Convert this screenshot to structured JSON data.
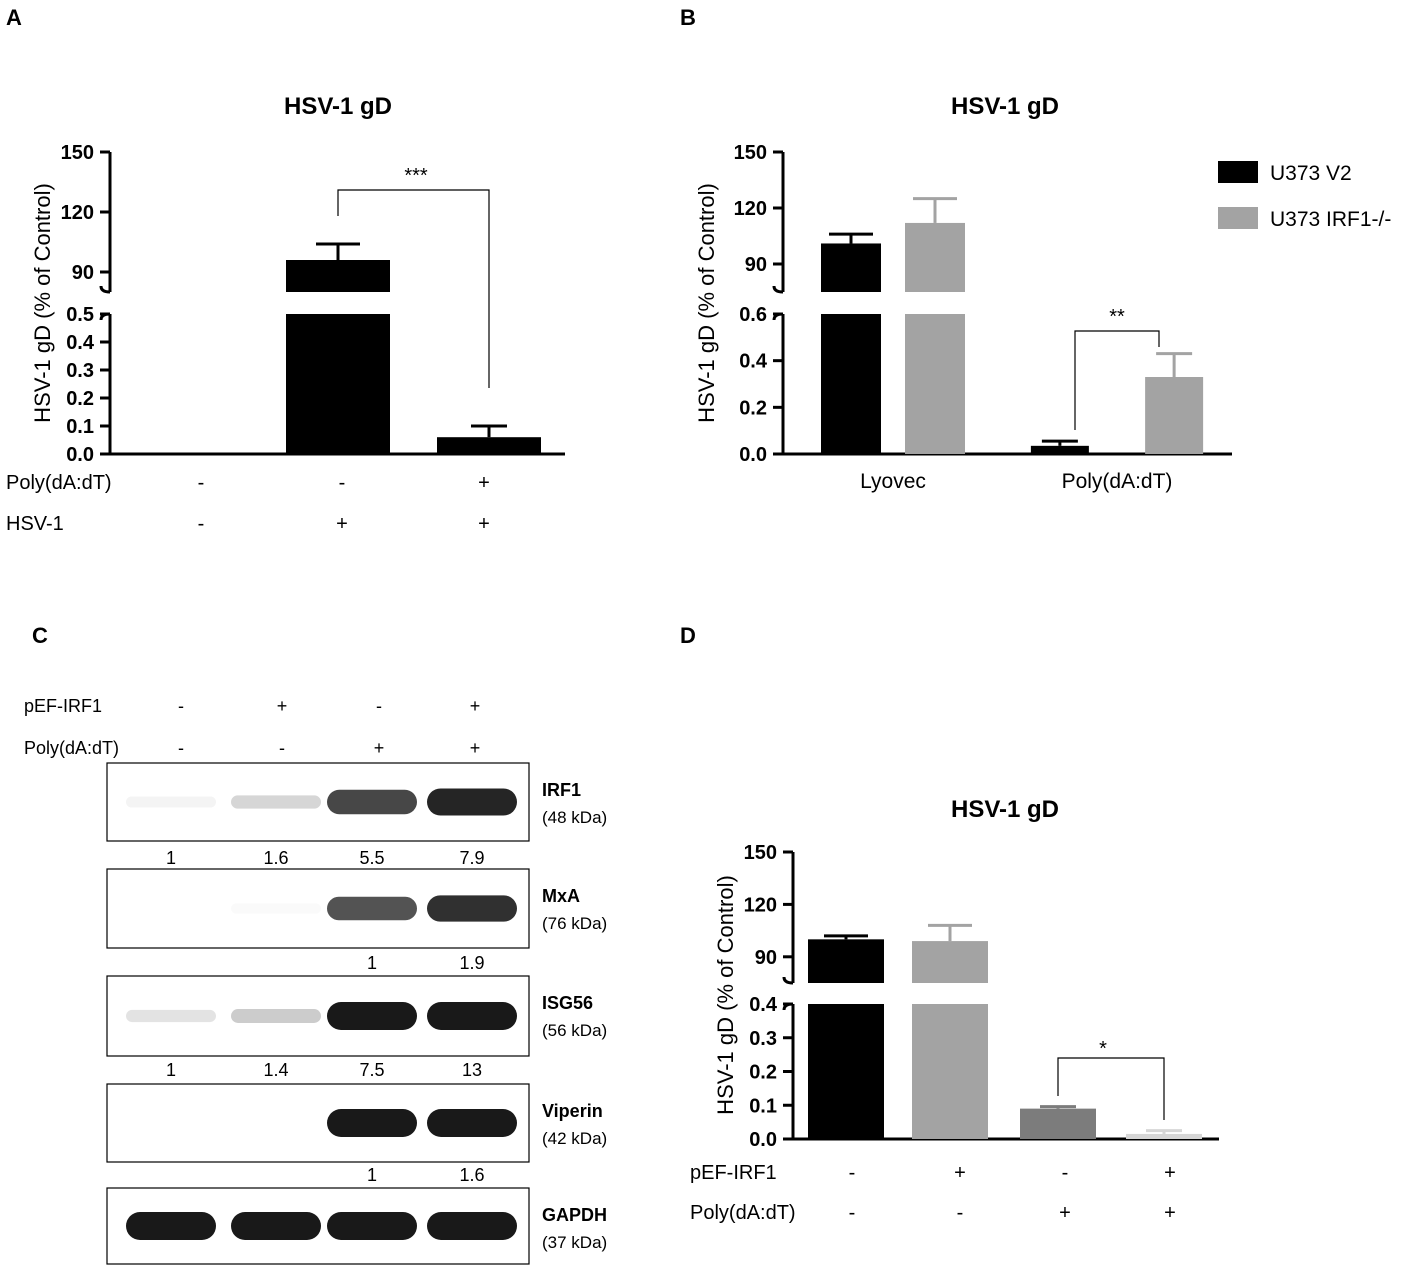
{
  "colors": {
    "black": "#000000",
    "gray": "#a3a3a3",
    "dark_gray": "#7c7c7c",
    "light_gray": "#d6d6d6"
  },
  "panels": {
    "A": {
      "letter": "A",
      "title": "HSV-1 gD",
      "ylabel": "HSV-1 gD (% of Control)",
      "significance": "***",
      "conditions": [
        {
          "label": "Poly(dA:dT)",
          "values": [
            "-",
            "-",
            "+"
          ]
        },
        {
          "label": "HSV-1",
          "values": [
            "-",
            "+",
            "+"
          ]
        }
      ]
    },
    "B": {
      "letter": "B",
      "title": "HSV-1 gD",
      "ylabel": "HSV-1 gD (% of Control)",
      "significance": "**"
    },
    "C": {
      "letter": "C",
      "conditions": [
        {
          "label": "pEF-IRF1",
          "values": [
            "-",
            "+",
            "-",
            "+"
          ]
        },
        {
          "label": "Poly(dA:dT)",
          "values": [
            "-",
            "-",
            "+",
            "+"
          ]
        }
      ],
      "blots": [
        {
          "name": "IRF1",
          "size": "(48 kDa)",
          "quant": [
            "1",
            "1.6",
            "5.5",
            "7.9"
          ],
          "intensity": [
            0.05,
            0.18,
            0.8,
            0.95
          ]
        },
        {
          "name": "MxA",
          "size": "(76 kDa)",
          "quant": [
            "",
            "",
            "1",
            "1.9"
          ],
          "intensity": [
            0.0,
            0.02,
            0.75,
            0.9
          ]
        },
        {
          "name": "ISG56",
          "size": "(56 kDa)",
          "quant": [
            "1",
            "1.4",
            "7.5",
            "13"
          ],
          "intensity": [
            0.12,
            0.22,
            1.0,
            1.0
          ]
        },
        {
          "name": "Viperin",
          "size": "(42 kDa)",
          "quant": [
            "",
            "",
            "1",
            "1.6"
          ],
          "intensity": [
            0.0,
            0.0,
            1.0,
            1.0
          ]
        },
        {
          "name": "GAPDH",
          "size": "(37 kDa)",
          "quant": [
            "",
            "",
            "",
            ""
          ],
          "intensity": [
            1.0,
            1.0,
            1.0,
            1.0
          ]
        }
      ]
    },
    "D": {
      "letter": "D",
      "title": "HSV-1 gD",
      "ylabel": "HSV-1 gD (% of Control)",
      "significance": "*",
      "conditions": [
        {
          "label": "pEF-IRF1",
          "values": [
            "-",
            "+",
            "-",
            "+"
          ]
        },
        {
          "label": "Poly(dA:dT)",
          "values": [
            "-",
            "-",
            "+",
            "+"
          ]
        }
      ]
    }
  },
  "chart_data": [
    {
      "panel": "A",
      "type": "bar",
      "title": "HSV-1 gD",
      "ylabel": "HSV-1 gD (% of Control)",
      "broken_axis": true,
      "lower_axis": {
        "ylim": [
          0,
          0.5
        ],
        "ticks": [
          "0.0",
          "0.1",
          "0.2",
          "0.3",
          "0.4",
          "0.5"
        ]
      },
      "upper_axis": {
        "ylim": [
          80,
          150
        ],
        "ticks": [
          "90",
          "120",
          "150"
        ]
      },
      "categories": [
        "1",
        "2",
        "3"
      ],
      "values": [
        0.005,
        96,
        0.06
      ],
      "errors": [
        0,
        8,
        0.04
      ],
      "significance": [
        {
          "from": 1,
          "to": 2,
          "label": "***"
        }
      ]
    },
    {
      "panel": "B",
      "type": "bar",
      "title": "HSV-1 gD",
      "ylabel": "HSV-1 gD (% of Control)",
      "broken_axis": true,
      "lower_axis": {
        "ylim": [
          0,
          0.6
        ],
        "ticks": [
          "0.0",
          "0.2",
          "0.4",
          "0.6"
        ]
      },
      "upper_axis": {
        "ylim": [
          75,
          150
        ],
        "ticks": [
          "90",
          "120",
          "150"
        ]
      },
      "categories": [
        "Lyovec",
        "Poly(dA:dT)"
      ],
      "series": [
        {
          "name": "U373 V2",
          "color": "#000000",
          "values": [
            101,
            0.035
          ],
          "errors": [
            5,
            0.02
          ]
        },
        {
          "name": "U373 IRF1-/-",
          "color": "#a3a3a3",
          "values": [
            112,
            0.33
          ],
          "errors": [
            13,
            0.1
          ]
        }
      ],
      "legend": "top-right",
      "significance": [
        {
          "category": "Poly(dA:dT)",
          "label": "**"
        }
      ]
    },
    {
      "panel": "D",
      "type": "bar",
      "title": "HSV-1 gD",
      "ylabel": "HSV-1 gD (% of Control)",
      "broken_axis": true,
      "lower_axis": {
        "ylim": [
          0,
          0.4
        ],
        "ticks": [
          "0.0",
          "0.1",
          "0.2",
          "0.3",
          "0.4"
        ]
      },
      "upper_axis": {
        "ylim": [
          75,
          150
        ],
        "ticks": [
          "90",
          "120",
          "150"
        ]
      },
      "categories": [
        "1",
        "2",
        "3",
        "4"
      ],
      "values": [
        100,
        99,
        0.09,
        0.015
      ],
      "errors": [
        2,
        9,
        0.006,
        0.01
      ],
      "colors": [
        "#000000",
        "#a3a3a3",
        "#7c7c7c",
        "#d6d6d6"
      ],
      "significance": [
        {
          "from": 2,
          "to": 3,
          "label": "*"
        }
      ]
    }
  ]
}
